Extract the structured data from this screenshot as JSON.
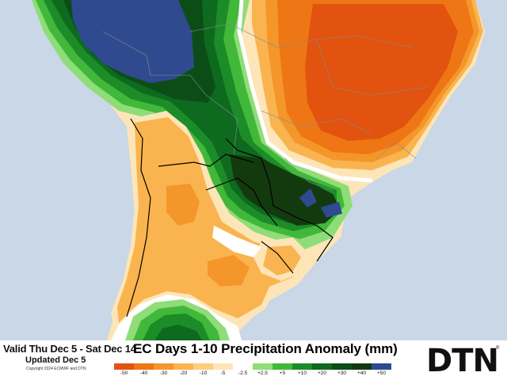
{
  "valid_text": "Valid Thu Dec 5 - Sat Dec 14",
  "updated_text": "Updated Dec 5",
  "copyright_text": "Copyright 2024 ECMWF and DTN",
  "title": "EC Days 1-10 Precipitation Anomaly (mm)",
  "logo_text": "DTN",
  "logo_mark": "®",
  "legend": {
    "colors": [
      "#e2530f",
      "#ee7615",
      "#f5962a",
      "#fab44f",
      "#fdce80",
      "#fde5b8",
      "#ffffff",
      "#8fdd78",
      "#42b83a",
      "#1c8c28",
      "#0e6a1e",
      "#0c4d17",
      "#133a0f",
      "#2f4a8f"
    ],
    "ticks": [
      "-50",
      "-40",
      "-30",
      "-20",
      "-10",
      "-5",
      "-2.5",
      "+2.5",
      "+5",
      "+10",
      "+20",
      "+30",
      "+40",
      "+50"
    ]
  },
  "map": {
    "ocean_color": "#c9d7e6",
    "region": "South America",
    "features": [
      "dry-anomaly-brazil",
      "wet-anomaly-bolivia",
      "wet-anomaly-paraguay-south-brazil",
      "dry-anomaly-argentina",
      "wet-anomaly-patagonia"
    ]
  }
}
